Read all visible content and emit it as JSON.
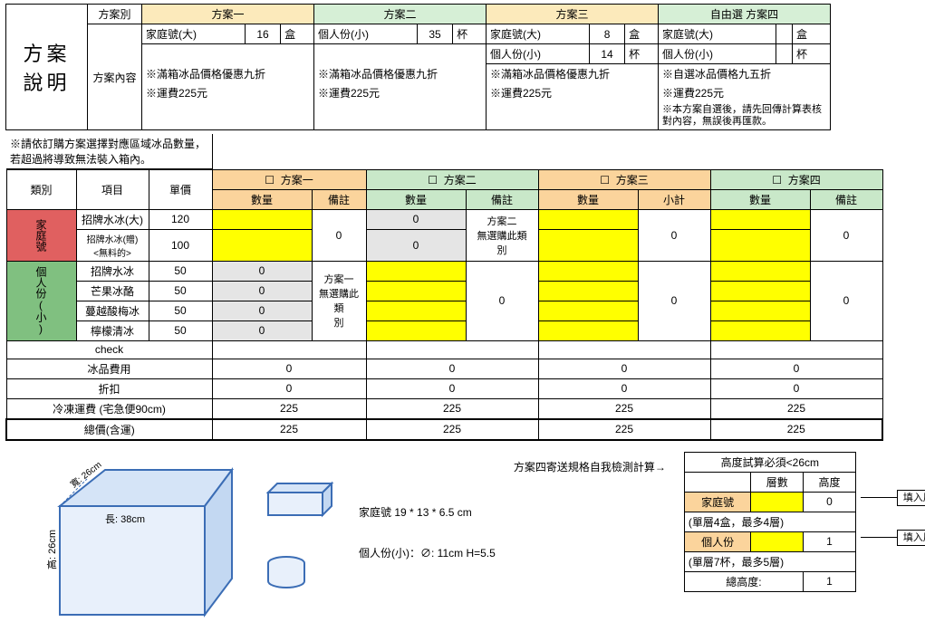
{
  "plan_desc": {
    "title": "方案\n說明",
    "plan_type_label": "方案別",
    "plan_content_label": "方案內容",
    "plans": [
      {
        "name": "方案一",
        "rows": [
          [
            "家庭號(大)",
            "16",
            "盒"
          ]
        ],
        "notes": [
          "※滿箱冰品價格優惠九折",
          "※運費225元"
        ],
        "header_bg": "#fceabb"
      },
      {
        "name": "方案二",
        "rows": [
          [
            "個人份(小)",
            "35",
            "杯"
          ]
        ],
        "notes": [
          "※滿箱冰品價格優惠九折",
          "※運費225元"
        ],
        "header_bg": "#d6efd6"
      },
      {
        "name": "方案三",
        "rows": [
          [
            "家庭號(大)",
            "8",
            "盒"
          ],
          [
            "個人份(小)",
            "14",
            "杯"
          ]
        ],
        "notes": [
          "※滿箱冰品價格優惠九折",
          "※運費225元"
        ],
        "header_bg": "#fceabb"
      },
      {
        "name": "自由選 方案四",
        "rows": [
          [
            "家庭號(大)",
            "",
            "盒"
          ],
          [
            "個人份(小)",
            "",
            "杯"
          ]
        ],
        "notes": [
          "※自選冰品價格九五折",
          "※運費225元",
          "※本方案自選後，請先回傳計算表核",
          "對內容，無誤後再匯款。"
        ],
        "header_bg": "#d6efd6"
      }
    ]
  },
  "order_note": "※請依訂購方案選擇對應區域冰品數量，若超過將導致無法裝入箱內。",
  "order_table": {
    "cat_label": "類別",
    "item_label": "項目",
    "price_label": "單價",
    "plan_cols": [
      {
        "name": "方案一",
        "qty": "數量",
        "note": "備註",
        "hdr_bg": "#fbd49c"
      },
      {
        "name": "方案二",
        "qty": "數量",
        "note": "備註",
        "hdr_bg": "#c9e8c9"
      },
      {
        "name": "方案三",
        "qty": "數量",
        "note": "小計",
        "hdr_bg": "#fbd49c"
      },
      {
        "name": "方案四",
        "qty": "數量",
        "note": "備註",
        "hdr_bg": "#c9e8c9"
      }
    ],
    "family_cat": "家庭號",
    "personal_cat": "個人份(小)",
    "family_rows": [
      {
        "item": "招牌水冰(大)",
        "price": "120"
      },
      {
        "item": "招牌水冰(贈)\n<無料的>",
        "price": "100"
      }
    ],
    "personal_rows": [
      {
        "item": "招牌水冰",
        "price": "50"
      },
      {
        "item": "芒果冰酪",
        "price": "50"
      },
      {
        "item": "蔓越酸梅冰",
        "price": "50"
      },
      {
        "item": "檸檬清冰",
        "price": "50"
      }
    ],
    "p1_note": "方案一\n無選購此類\n別",
    "p2_note": "方案二\n無選購此類\n別",
    "zeros": {
      "p2_fam1": "0",
      "p2_fam2": "0",
      "p1_per1": "0",
      "p1_per2": "0",
      "p1_per3": "0",
      "p1_per4": "0"
    },
    "merge_totals": {
      "p1": "0",
      "p2": "0",
      "p3a": "0",
      "p3b": "0",
      "p4a": "0",
      "p4b": "0"
    }
  },
  "summary": {
    "rows": [
      {
        "label": "check",
        "v": [
          "",
          "",
          "",
          ""
        ]
      },
      {
        "label": "冰品費用",
        "v": [
          "0",
          "0",
          "0",
          "0"
        ]
      },
      {
        "label": "折扣",
        "v": [
          "0",
          "0",
          "0",
          "0"
        ]
      },
      {
        "label": "冷凍運費 (宅急便90cm)",
        "v": [
          "225",
          "225",
          "225",
          "225"
        ]
      },
      {
        "label": "總價(含運)",
        "v": [
          "225",
          "225",
          "225",
          "225"
        ]
      }
    ]
  },
  "footer": {
    "box": {
      "width_label": "長: 38cm",
      "height_label": "高: 26cm",
      "depth_label": "寬: 26cm"
    },
    "family_dim": "家庭號 19 * 13 * 6.5 cm",
    "personal_dim": "個人份(小)：∅: 11cm H=5.5",
    "calc_label": "方案四寄送規格自我檢測計算→",
    "height_table": {
      "title": "高度試算必須<26cm",
      "col_layer": "層數",
      "col_height": "高度",
      "family": "家庭號",
      "family_height": "0",
      "family_note": "(單層4盒，最多4層)",
      "personal": "個人份",
      "personal_height": "1",
      "personal_note": "(單層7杯，最多5層)",
      "total": "總高度:",
      "total_val": "1"
    },
    "tag": "填入層數"
  },
  "colors": {
    "yellow": "#ffff00",
    "grey": "#e5e5e5"
  }
}
